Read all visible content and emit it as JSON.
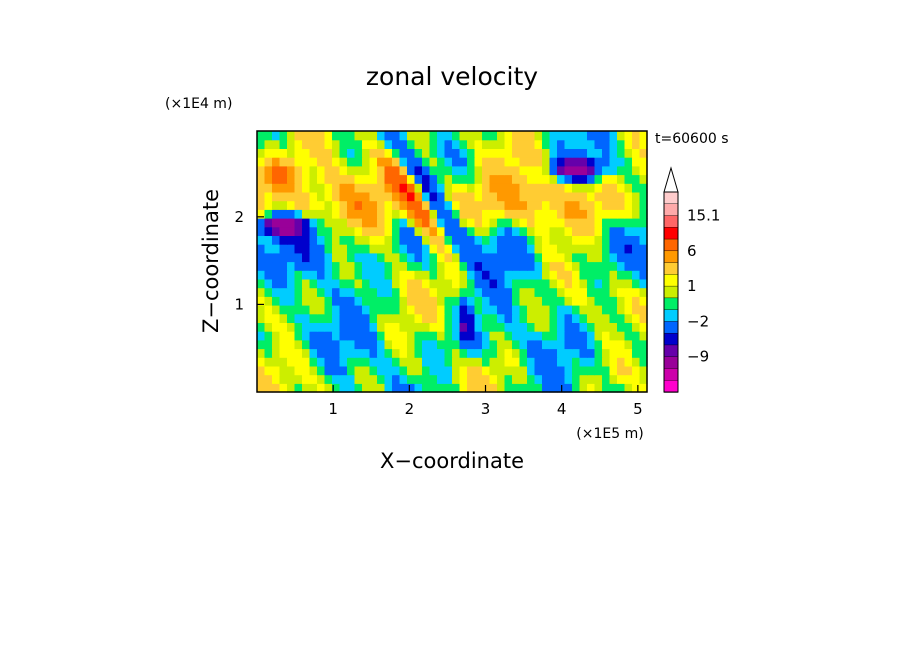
{
  "chart_data": {
    "type": "heatmap",
    "title": "zonal velocity",
    "xlabel": "X−coordinate",
    "ylabel": "Z−coordinate",
    "x_unit": "(×1E5 m)",
    "y_unit": "(×1E4 m)",
    "time_label": "t=60600 s",
    "xlim": [
      0,
      5.12
    ],
    "ylim": [
      0,
      2.98
    ],
    "x_ticks": [
      1,
      2,
      3,
      4,
      5
    ],
    "y_ticks": [
      1,
      2
    ],
    "colorbar": {
      "labels": [
        "15.1",
        "6",
        "1",
        "−2",
        "−9"
      ],
      "label_values": [
        15.1,
        6,
        1,
        -2,
        -9
      ],
      "levels": [
        -15,
        -12,
        -9,
        -6,
        -4,
        -2,
        -1,
        0,
        1,
        2,
        4,
        6,
        9,
        12,
        15.1
      ],
      "colors": [
        "#ff00cc",
        "#cc00aa",
        "#990099",
        "#6600aa",
        "#0000cc",
        "#0066ff",
        "#00ccff",
        "#00ee66",
        "#ccee00",
        "#ffff00",
        "#ffcc33",
        "#ff9900",
        "#ff6600",
        "#ff0000",
        "#ff6666",
        "#ffaaaa",
        "#ffcccc"
      ],
      "extend": "max"
    },
    "field_description_structure": {
      "rows": 30,
      "cols": 52
    },
    "grid": false,
    "legend_placement": "right"
  }
}
